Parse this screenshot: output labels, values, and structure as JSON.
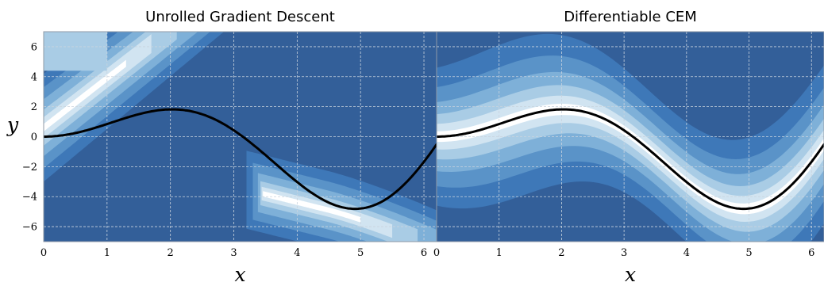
{
  "chart_data": [
    {
      "type": "contour",
      "title": "Unrolled Gradient Descent",
      "xlabel": "x",
      "ylabel": "y",
      "xlim": [
        0,
        6.2
      ],
      "ylim": [
        -7,
        7
      ],
      "xticks": [
        0,
        1,
        2,
        3,
        4,
        5,
        6
      ],
      "yticks": [
        -6,
        -4,
        -2,
        0,
        2,
        4,
        6
      ],
      "grid": true,
      "colormap": "Blues",
      "curve": {
        "function": "y = x·sin(x)",
        "color": "#000000"
      }
    },
    {
      "type": "contour",
      "title": "Differentiable CEM",
      "xlabel": "x",
      "ylabel": "",
      "xlim": [
        0,
        6.2
      ],
      "ylim": [
        -7,
        7
      ],
      "xticks": [
        0,
        1,
        2,
        3,
        4,
        5,
        6
      ],
      "yticks": [
        -6,
        -4,
        -2,
        0,
        2,
        4,
        6
      ],
      "grid": true,
      "colormap": "Blues",
      "curve": {
        "function": "y = x·sin(x)",
        "color": "#000000"
      }
    }
  ],
  "colors": {
    "background": "#335f99",
    "level1": "#3e78b8",
    "level2": "#5a93c8",
    "level3": "#7eb0d8",
    "level4": "#a9cce5",
    "level5": "#d1e4f1",
    "peak": "#ffffff"
  }
}
